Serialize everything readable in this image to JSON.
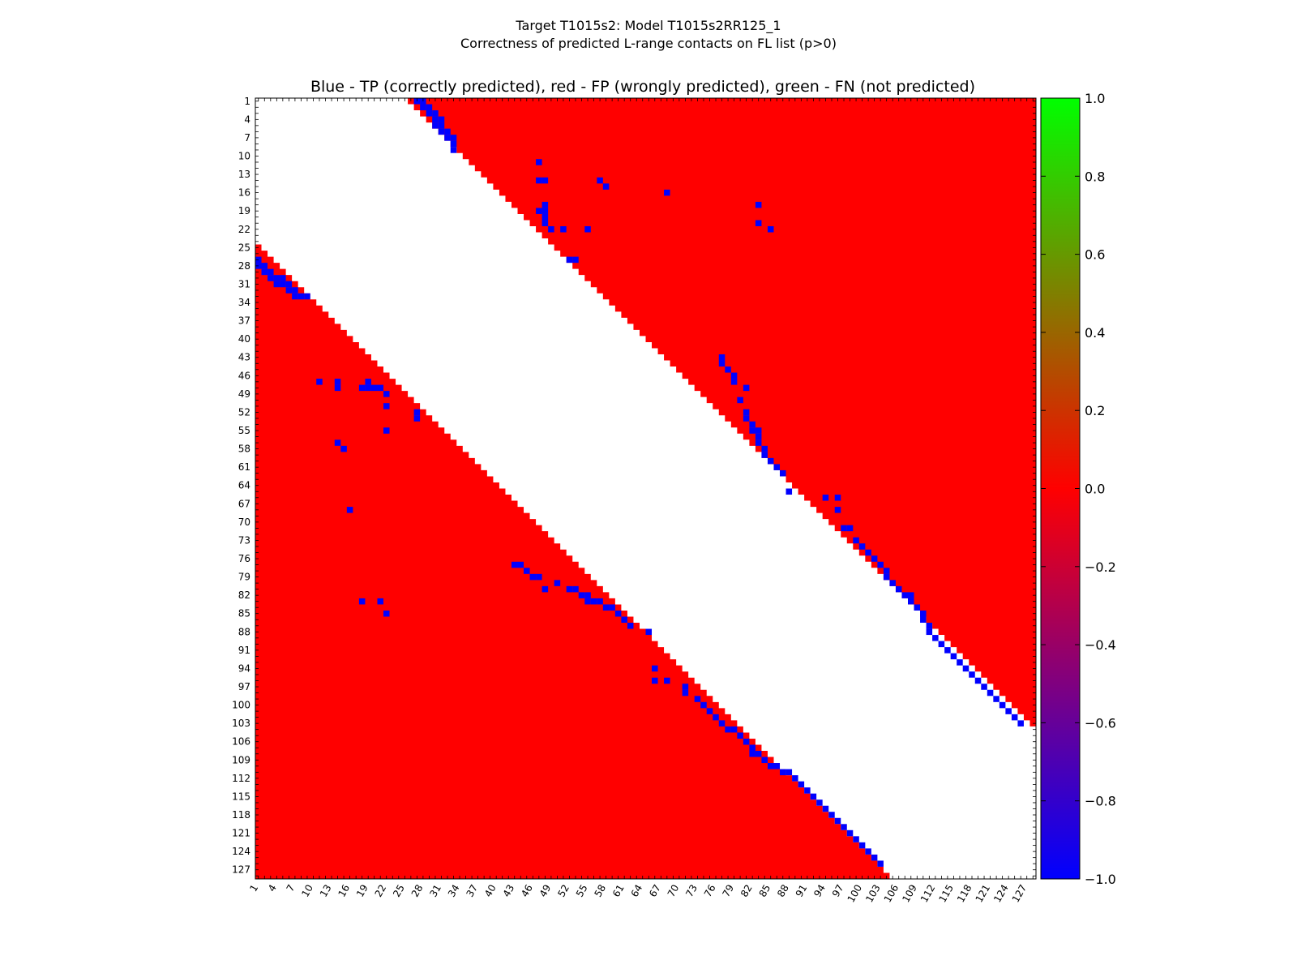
{
  "figure": {
    "suptitle_line1": "Target T1015s2: Model T1015s2RR125_1",
    "suptitle_line2": "Correctness of predicted L-range contacts on FL list (p>0)"
  },
  "chart_data": {
    "type": "heatmap",
    "title": "Blue - TP (correctly predicted), red - FP (wrongly predicted), green - FN (not predicted)",
    "xlabel": "",
    "ylabel": "",
    "n_residues": 128,
    "x_ticks": [
      1,
      4,
      7,
      10,
      13,
      16,
      19,
      22,
      25,
      28,
      31,
      34,
      37,
      40,
      43,
      46,
      49,
      52,
      55,
      58,
      61,
      64,
      67,
      70,
      73,
      76,
      79,
      82,
      85,
      88,
      91,
      94,
      97,
      100,
      103,
      106,
      109,
      112,
      115,
      118,
      121,
      124,
      127
    ],
    "y_ticks": [
      1,
      4,
      7,
      10,
      13,
      16,
      19,
      22,
      25,
      28,
      31,
      34,
      37,
      40,
      43,
      46,
      49,
      52,
      55,
      58,
      61,
      64,
      67,
      70,
      73,
      76,
      79,
      82,
      85,
      88,
      91,
      94,
      97,
      100,
      103,
      106,
      109,
      112,
      115,
      118,
      121,
      124,
      127
    ],
    "xlim": [
      1,
      128
    ],
    "ylim": [
      128,
      1
    ],
    "excluded_band": 24,
    "colors": {
      "TP": "#0000ff",
      "FP": "#ff0000",
      "FN": "#00ff00",
      "none": "#ffffff"
    },
    "colorbar": {
      "ticks": [
        1.0,
        0.8,
        0.6,
        0.4,
        0.2,
        0.0,
        -0.2,
        -0.4,
        -0.6,
        -0.8,
        -1.0
      ],
      "tick_labels": [
        "1.0",
        "0.8",
        "0.6",
        "0.4",
        "0.2",
        "0.0",
        "−0.2",
        "−0.4",
        "−0.6",
        "−0.8",
        "−1.0"
      ],
      "range": [
        -1.0,
        1.0
      ],
      "stops": [
        "#0000ff",
        "#ff0000",
        "#00ff00"
      ]
    },
    "tp_contacts": [
      [
        1,
        27
      ],
      [
        1,
        28
      ],
      [
        2,
        28
      ],
      [
        2,
        29
      ],
      [
        3,
        29
      ],
      [
        3,
        30
      ],
      [
        4,
        30
      ],
      [
        4,
        31
      ],
      [
        5,
        30
      ],
      [
        5,
        31
      ],
      [
        6,
        31
      ],
      [
        6,
        32
      ],
      [
        7,
        32
      ],
      [
        7,
        33
      ],
      [
        8,
        33
      ],
      [
        9,
        33
      ],
      [
        11,
        47
      ],
      [
        14,
        47
      ],
      [
        14,
        48
      ],
      [
        14,
        57
      ],
      [
        15,
        58
      ],
      [
        16,
        68
      ],
      [
        18,
        48
      ],
      [
        18,
        83
      ],
      [
        19,
        47
      ],
      [
        19,
        48
      ],
      [
        20,
        48
      ],
      [
        21,
        48
      ],
      [
        21,
        83
      ],
      [
        22,
        49
      ],
      [
        22,
        51
      ],
      [
        22,
        55
      ],
      [
        22,
        85
      ],
      [
        27,
        52
      ],
      [
        27,
        53
      ],
      [
        43,
        77
      ],
      [
        44,
        77
      ],
      [
        45,
        78
      ],
      [
        46,
        79
      ],
      [
        47,
        79
      ],
      [
        48,
        81
      ],
      [
        50,
        80
      ],
      [
        52,
        81
      ],
      [
        53,
        81
      ],
      [
        54,
        82
      ],
      [
        55,
        82
      ],
      [
        55,
        83
      ],
      [
        56,
        83
      ],
      [
        57,
        83
      ],
      [
        58,
        84
      ],
      [
        59,
        84
      ],
      [
        60,
        85
      ],
      [
        61,
        86
      ],
      [
        62,
        87
      ],
      [
        65,
        88
      ],
      [
        66,
        94
      ],
      [
        66,
        96
      ],
      [
        68,
        96
      ],
      [
        71,
        97
      ],
      [
        71,
        98
      ],
      [
        73,
        99
      ],
      [
        74,
        100
      ],
      [
        75,
        101
      ],
      [
        76,
        102
      ],
      [
        77,
        103
      ],
      [
        78,
        104
      ],
      [
        79,
        104
      ],
      [
        80,
        105
      ],
      [
        81,
        106
      ],
      [
        82,
        107
      ],
      [
        82,
        108
      ],
      [
        83,
        108
      ],
      [
        84,
        109
      ],
      [
        85,
        110
      ],
      [
        86,
        110
      ],
      [
        87,
        111
      ],
      [
        88,
        111
      ],
      [
        89,
        112
      ],
      [
        90,
        113
      ],
      [
        91,
        114
      ],
      [
        92,
        115
      ],
      [
        93,
        116
      ],
      [
        94,
        117
      ],
      [
        95,
        118
      ],
      [
        96,
        119
      ],
      [
        97,
        120
      ],
      [
        98,
        121
      ],
      [
        99,
        122
      ],
      [
        100,
        123
      ],
      [
        101,
        124
      ],
      [
        102,
        125
      ],
      [
        103,
        126
      ]
    ],
    "fp_coverage": "Most of the upper and lower triangles outside the excluded diagonal band are predicted false positives (red); white cells are unpredicted pairs."
  }
}
